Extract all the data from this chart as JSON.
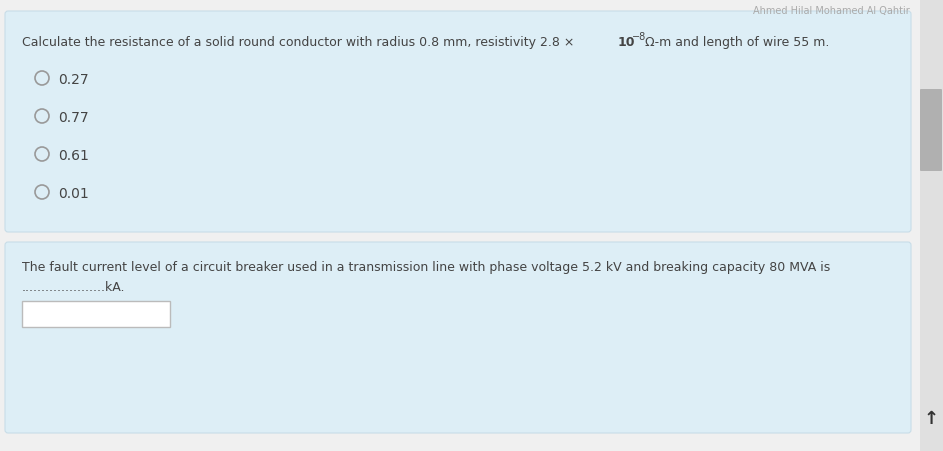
{
  "page_bg": "#f0f0f0",
  "q1_box_color": "#ddeef6",
  "q1_box_edge": "#c8dde8",
  "q1_options": [
    "0.27",
    "0.77",
    "0.61",
    "0.01"
  ],
  "q2_box_color": "#ddeef6",
  "q2_box_edge": "#c8dde8",
  "q2_question": "The fault current level of a circuit breaker used in a transmission line with phase voltage 5.2 kV and breaking capacity 80 MVA is",
  "q2_subtext": ".....................kA.",
  "scrollbar_track_color": "#e0e0e0",
  "scrollbar_thumb_color": "#b0b0b0",
  "arrow_color": "#333333",
  "text_color": "#444444",
  "header_color": "#aaaaaa",
  "option_circle_color": "#ddeef6",
  "option_circle_edge": "#999999",
  "input_box_color": "#ffffff",
  "input_box_edge": "#bbbbbb",
  "q1_text_main": "Calculate the resistance of a solid round conductor with radius 0.8 mm, resistivity 2.8 × 10",
  "q1_text_sup": "−8",
  "q1_text_end": " Ω-m and length of wire 55 m.",
  "header_text": "Ahmed Hilal Mohamed Al Qahtir"
}
